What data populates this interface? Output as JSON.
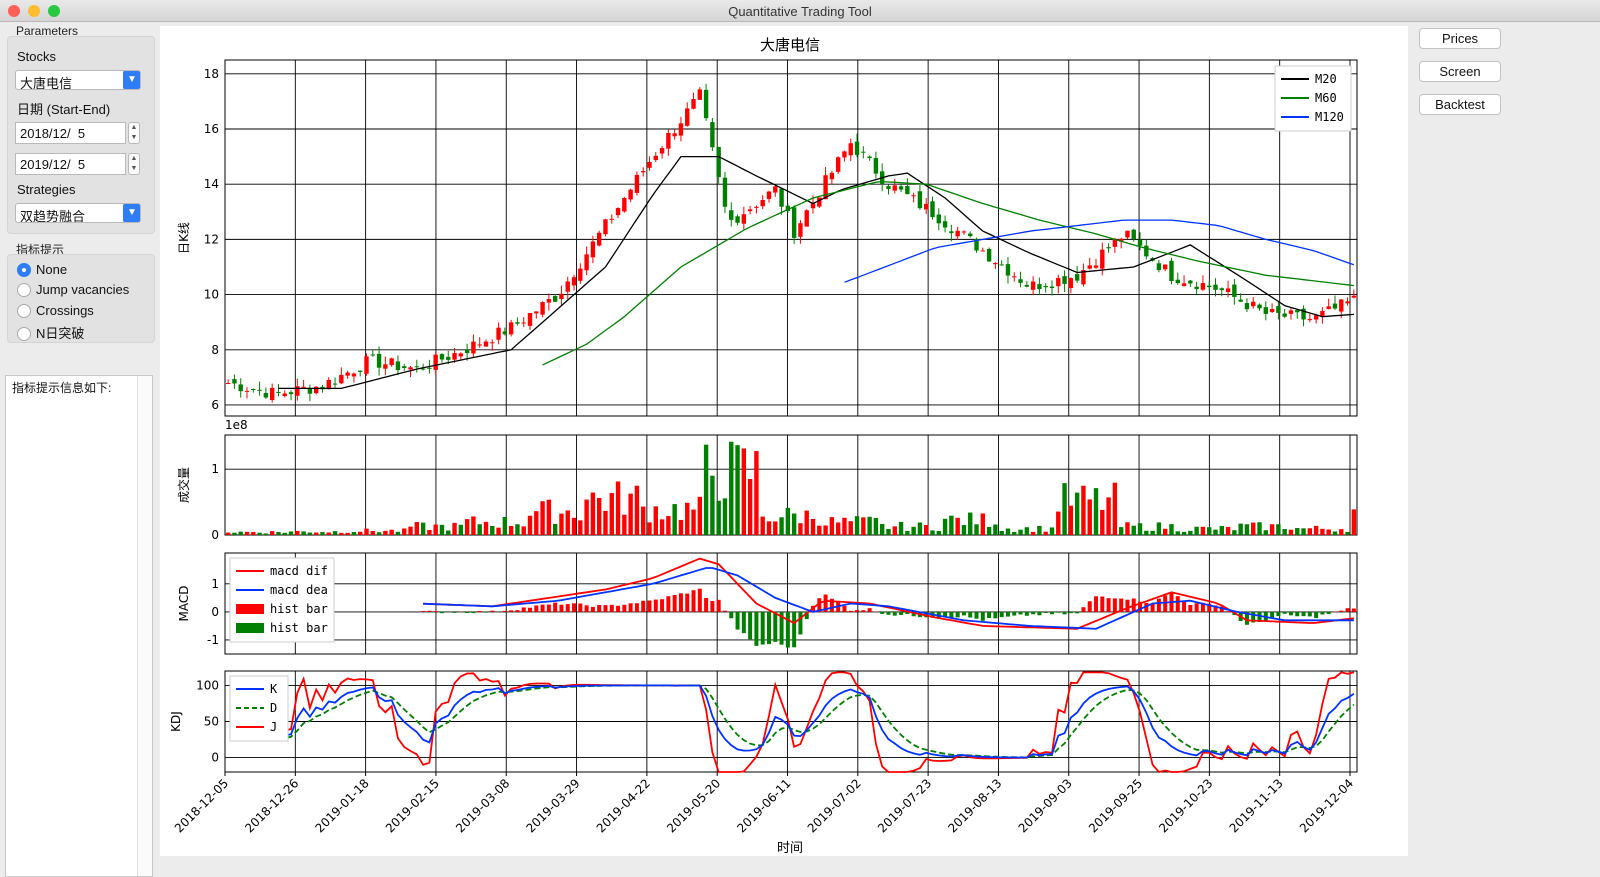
{
  "window": {
    "title": "Quantitative Trading Tool",
    "close_color": "#fe5f57",
    "minimize_color": "#febc2e",
    "zoom_color": "#28c840"
  },
  "parameters": {
    "group_title": "Parameters",
    "stocks_label": "Stocks",
    "stock_value": "大唐电信",
    "date_label": "日期 (Start-End)",
    "start_date": "2018/12/  5",
    "end_date": "2019/12/  5",
    "strategies_label": "Strategies",
    "strategy_value": "双趋势融合"
  },
  "indicator": {
    "group_title": "指标提示",
    "options": [
      "None",
      "Jump vacancies",
      "Crossings",
      "N日突破"
    ],
    "selected": "None"
  },
  "info": {
    "text": "指标提示信息如下:"
  },
  "buttons": {
    "prices": "Prices",
    "screen": "Screen",
    "backtest": "Backtest"
  },
  "chart_data": {
    "title": "大唐电信",
    "xlabel": "时间",
    "x_ticks": [
      "2018-12-05",
      "2018-12-26",
      "2019-01-18",
      "2019-02-15",
      "2019-03-08",
      "2019-03-29",
      "2019-04-22",
      "2019-05-20",
      "2019-06-11",
      "2019-07-02",
      "2019-07-23",
      "2019-08-13",
      "2019-09-03",
      "2019-09-25",
      "2019-10-23",
      "2019-11-13",
      "2019-12-04"
    ],
    "panels": [
      {
        "name": "price",
        "type": "candlestick",
        "ylabel": "日K线",
        "ylim": [
          5.6,
          18.5
        ],
        "yticks": [
          6,
          8,
          10,
          12,
          14,
          16,
          18
        ],
        "up_color": "#ff0000",
        "down_color": "#008000",
        "close_anchors": [
          [
            0,
            6.8
          ],
          [
            0.05,
            6.4
          ],
          [
            0.1,
            6.7
          ],
          [
            0.15,
            7.6
          ],
          [
            0.2,
            7.3
          ],
          [
            0.25,
            8.0
          ],
          [
            0.3,
            8.8
          ],
          [
            0.35,
            10.0
          ],
          [
            0.4,
            12.5
          ],
          [
            0.45,
            15.0
          ],
          [
            0.5,
            17.2
          ],
          [
            0.53,
            12.6
          ],
          [
            0.58,
            13.8
          ],
          [
            0.6,
            12.3
          ],
          [
            0.66,
            15.5
          ],
          [
            0.7,
            14.0
          ],
          [
            0.75,
            12.9
          ],
          [
            0.8,
            11.6
          ],
          [
            0.85,
            10.3
          ],
          [
            0.9,
            10.7
          ],
          [
            0.95,
            12.2
          ],
          [
            1.0,
            10.7
          ],
          [
            1.05,
            10.2
          ],
          [
            1.1,
            9.3
          ],
          [
            1.15,
            9.1
          ],
          [
            1.2,
            9.9
          ]
        ],
        "lines": [
          {
            "name": "M20",
            "color": "#000000",
            "anchors": [
              [
                0.05,
                6.6
              ],
              [
                0.12,
                6.6
              ],
              [
                0.2,
                7.3
              ],
              [
                0.3,
                8.0
              ],
              [
                0.35,
                9.5
              ],
              [
                0.4,
                11.0
              ],
              [
                0.45,
                13.6
              ],
              [
                0.48,
                15.0
              ],
              [
                0.52,
                15.0
              ],
              [
                0.56,
                14.3
              ],
              [
                0.59,
                13.8
              ],
              [
                0.62,
                13.3
              ],
              [
                0.65,
                13.8
              ],
              [
                0.7,
                14.3
              ],
              [
                0.72,
                14.4
              ],
              [
                0.76,
                13.5
              ],
              [
                0.8,
                12.3
              ],
              [
                0.85,
                11.5
              ],
              [
                0.9,
                10.8
              ],
              [
                0.96,
                11.0
              ],
              [
                1.02,
                11.8
              ],
              [
                1.08,
                10.5
              ],
              [
                1.12,
                9.6
              ],
              [
                1.16,
                9.2
              ],
              [
                1.2,
                9.3
              ]
            ]
          },
          {
            "name": "M60",
            "color": "#008000",
            "anchors": [
              [
                0.33,
                7.4
              ],
              [
                0.38,
                8.2
              ],
              [
                0.42,
                9.2
              ],
              [
                0.48,
                11.0
              ],
              [
                0.55,
                12.4
              ],
              [
                0.62,
                13.5
              ],
              [
                0.69,
                14.1
              ],
              [
                0.74,
                14.0
              ],
              [
                0.8,
                13.3
              ],
              [
                0.86,
                12.7
              ],
              [
                0.92,
                12.2
              ],
              [
                0.97,
                11.7
              ],
              [
                1.03,
                11.2
              ],
              [
                1.1,
                10.7
              ],
              [
                1.2,
                10.3
              ]
            ]
          },
          {
            "name": "M120",
            "color": "#0033ff",
            "anchors": [
              [
                0.65,
                10.4
              ],
              [
                0.75,
                11.7
              ],
              [
                0.85,
                12.3
              ],
              [
                0.95,
                12.7
              ],
              [
                1.0,
                12.7
              ],
              [
                1.05,
                12.5
              ],
              [
                1.1,
                12.0
              ],
              [
                1.15,
                11.6
              ],
              [
                1.2,
                11.0
              ]
            ]
          }
        ],
        "legend": "top-right"
      },
      {
        "name": "volume",
        "type": "bar",
        "ylabel": "成交量",
        "unit_label": "1e8",
        "ylim": [
          0,
          1.52
        ],
        "yticks": [
          0,
          1
        ],
        "peak_values": [
          0.07,
          0.08,
          0.1,
          0.2,
          0.3,
          0.55,
          0.85,
          0.6,
          1.5,
          0.45,
          0.3,
          0.2,
          0.35,
          0.15,
          0.8,
          0.2,
          0.15,
          0.2,
          0.15,
          0.55
        ]
      },
      {
        "name": "macd",
        "type": "line+bar",
        "ylabel": "MACD",
        "ylim": [
          -1.5,
          2.1
        ],
        "yticks": [
          -1,
          0,
          1
        ],
        "lines": [
          {
            "name": "macd dif",
            "color": "#ff0000",
            "anchors": [
              [
                0.2,
                0.3
              ],
              [
                0.28,
                0.2
              ],
              [
                0.34,
                0.5
              ],
              [
                0.4,
                0.8
              ],
              [
                0.45,
                1.2
              ],
              [
                0.5,
                1.9
              ],
              [
                0.52,
                1.7
              ],
              [
                0.56,
                0.3
              ],
              [
                0.6,
                -0.4
              ],
              [
                0.63,
                0.4
              ],
              [
                0.68,
                0.3
              ],
              [
                0.75,
                -0.2
              ],
              [
                0.8,
                -0.5
              ],
              [
                0.9,
                -0.6
              ],
              [
                0.95,
                0.1
              ],
              [
                1.0,
                0.7
              ],
              [
                1.05,
                0.3
              ],
              [
                1.08,
                -0.3
              ],
              [
                1.15,
                -0.4
              ],
              [
                1.2,
                -0.2
              ]
            ]
          },
          {
            "name": "macd dea",
            "color": "#0033ff",
            "anchors": [
              [
                0.2,
                0.3
              ],
              [
                0.28,
                0.2
              ],
              [
                0.35,
                0.4
              ],
              [
                0.4,
                0.7
              ],
              [
                0.45,
                1.0
              ],
              [
                0.51,
                1.6
              ],
              [
                0.54,
                1.3
              ],
              [
                0.58,
                0.5
              ],
              [
                0.62,
                0.0
              ],
              [
                0.66,
                0.3
              ],
              [
                0.7,
                0.2
              ],
              [
                0.78,
                -0.3
              ],
              [
                0.85,
                -0.5
              ],
              [
                0.92,
                -0.6
              ],
              [
                0.98,
                0.3
              ],
              [
                1.02,
                0.4
              ],
              [
                1.07,
                0.0
              ],
              [
                1.12,
                -0.3
              ],
              [
                1.2,
                -0.3
              ]
            ]
          }
        ],
        "bars": [
          {
            "name": "hist bar",
            "color": "#ff0000"
          },
          {
            "name": "hist bar",
            "color": "#008000"
          }
        ],
        "legend": "top-left"
      },
      {
        "name": "kdj",
        "type": "line",
        "ylabel": "KDJ",
        "ylim": [
          -20,
          120
        ],
        "yticks": [
          0,
          50,
          100
        ],
        "lines": [
          {
            "name": "K",
            "color": "#0033ff",
            "dash": false
          },
          {
            "name": "D",
            "color": "#008000",
            "dash": true
          },
          {
            "name": "J",
            "color": "#ff0000",
            "dash": false
          }
        ],
        "legend": "top-left"
      }
    ]
  }
}
